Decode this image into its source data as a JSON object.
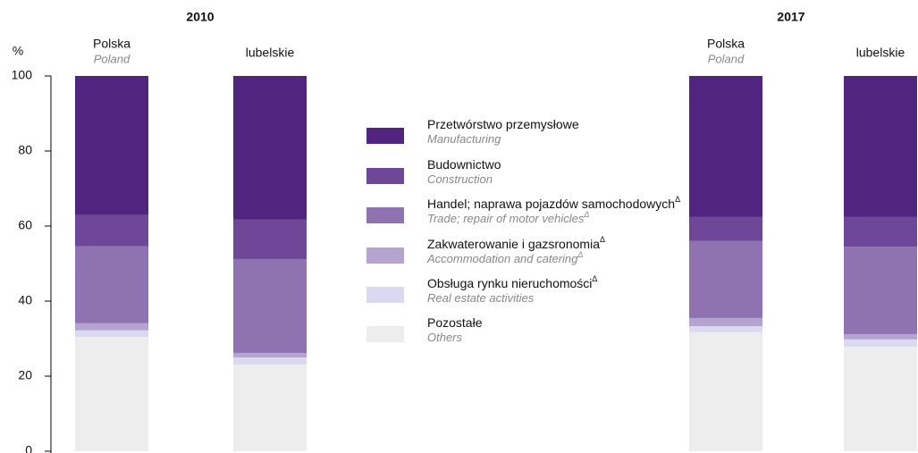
{
  "chart_data": {
    "type": "stacked_bar",
    "y_label": "%",
    "group_labels": [
      "2010",
      "2017"
    ],
    "categories": [
      "Polska",
      "lubelskie",
      "Polska",
      "lubelskie"
    ],
    "category_subtitles": [
      "Poland",
      null,
      "Poland",
      null
    ],
    "ylim": [
      0,
      100
    ],
    "yticks": [
      0,
      20,
      40,
      60,
      80,
      100
    ],
    "series": [
      {
        "name": "Przetwórstwo przemysłowe",
        "name_en": "Manufacturing",
        "color": "#512480",
        "values": [
          37.1,
          38.3,
          37.6,
          37.6
        ]
      },
      {
        "name": "Budownictwo",
        "name_en": "Construction",
        "color": "#6f4799",
        "values": [
          8.3,
          10.5,
          6.4,
          7.9
        ]
      },
      {
        "name": "Handel; naprawa pojazdów samochodowych",
        "note_mark": "Δ",
        "name_en": "Trade; repair of motor vehicles",
        "note_mark_en": "Δ",
        "color": "#8f72b0",
        "values": [
          20.5,
          25.0,
          20.5,
          23.3
        ]
      },
      {
        "name": "Zakwaterowanie i gazsronomia",
        "note_mark": "Δ",
        "name_en": "Accommodation and catering",
        "note_mark_en": "Δ",
        "color": "#b5a4cf",
        "values": [
          1.9,
          1.2,
          2.2,
          1.4
        ]
      },
      {
        "name": "Obsługa rynku nieruchomości",
        "note_mark": "Δ",
        "name_en": "Real estate activities",
        "color": "#d9d9ef",
        "values": [
          1.7,
          1.9,
          1.6,
          1.9
        ]
      },
      {
        "name": "Pozostałe",
        "name_en": "Others",
        "color": "#ededed",
        "values": [
          30.5,
          23.1,
          31.7,
          27.9
        ]
      }
    ]
  }
}
